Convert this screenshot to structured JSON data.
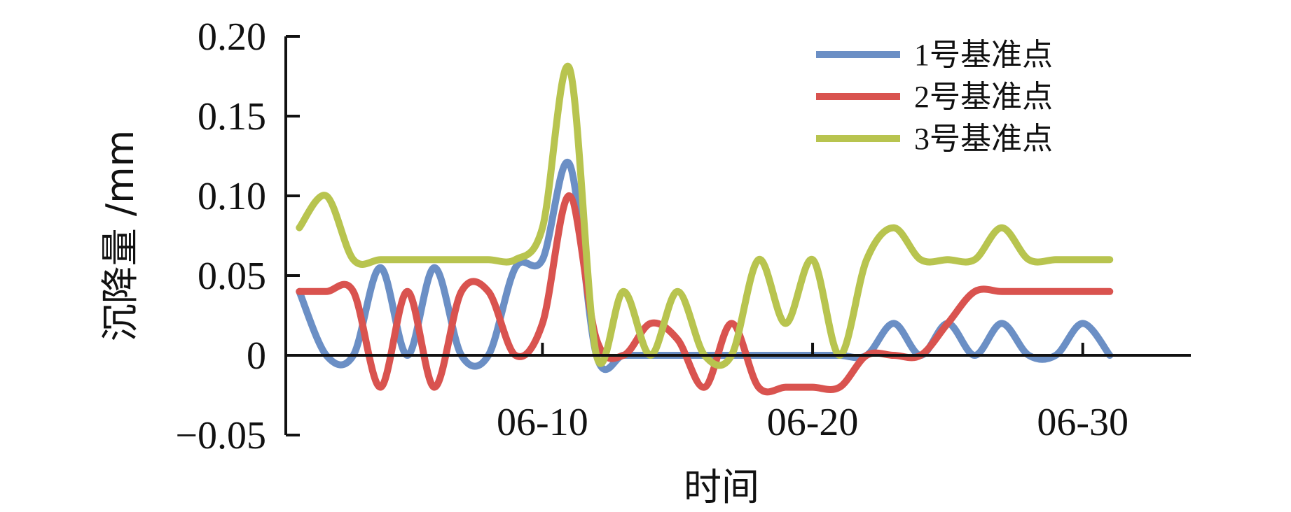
{
  "chart_data": {
    "type": "line",
    "xlabel": "时间",
    "ylabel": "沉降量 /mm",
    "ylim": [
      -0.05,
      0.2
    ],
    "yticks": [
      {
        "value": -0.05,
        "label": "−0.05"
      },
      {
        "value": 0,
        "label": "0"
      },
      {
        "value": 0.05,
        "label": "0.05"
      },
      {
        "value": 0.1,
        "label": "0.10"
      },
      {
        "value": 0.15,
        "label": "0.15"
      },
      {
        "value": 0.2,
        "label": "0.20"
      }
    ],
    "xlim": [
      0.5,
      34
    ],
    "xticks": [
      {
        "value": 10,
        "label": "06-10"
      },
      {
        "value": 20,
        "label": "06-20"
      },
      {
        "value": 30,
        "label": "06-30"
      }
    ],
    "legend_position": "top-right",
    "grid": false,
    "series": [
      {
        "name": "1号基准点",
        "color": "#6b8fc5",
        "points": [
          [
            1,
            0.04
          ],
          [
            2,
            0
          ],
          [
            3,
            0
          ],
          [
            4,
            0.055
          ],
          [
            5,
            0
          ],
          [
            6,
            0.055
          ],
          [
            7,
            0
          ],
          [
            8,
            0
          ],
          [
            9,
            0.055
          ],
          [
            10,
            0.06
          ],
          [
            11,
            0.12
          ],
          [
            12,
            0
          ],
          [
            13,
            0
          ],
          [
            14,
            0
          ],
          [
            15,
            0
          ],
          [
            16,
            0
          ],
          [
            17,
            0
          ],
          [
            18,
            0
          ],
          [
            19,
            0
          ],
          [
            20,
            0
          ],
          [
            21,
            0
          ],
          [
            22,
            0
          ],
          [
            23,
            0.02
          ],
          [
            24,
            0
          ],
          [
            25,
            0.02
          ],
          [
            26,
            0
          ],
          [
            27,
            0.02
          ],
          [
            28,
            0
          ],
          [
            29,
            0
          ],
          [
            30,
            0.02
          ],
          [
            31,
            0
          ]
        ]
      },
      {
        "name": "2号基准点",
        "color": "#d9534f",
        "points": [
          [
            1,
            0.04
          ],
          [
            2,
            0.04
          ],
          [
            3,
            0.04
          ],
          [
            4,
            -0.02
          ],
          [
            5,
            0.04
          ],
          [
            6,
            -0.02
          ],
          [
            7,
            0.04
          ],
          [
            8,
            0.04
          ],
          [
            9,
            0
          ],
          [
            10,
            0.02
          ],
          [
            11,
            0.1
          ],
          [
            12,
            0.01
          ],
          [
            13,
            0
          ],
          [
            14,
            0.02
          ],
          [
            15,
            0.01
          ],
          [
            16,
            -0.02
          ],
          [
            17,
            0.02
          ],
          [
            18,
            -0.02
          ],
          [
            19,
            -0.02
          ],
          [
            20,
            -0.02
          ],
          [
            21,
            -0.02
          ],
          [
            22,
            0
          ],
          [
            23,
            0
          ],
          [
            24,
            0
          ],
          [
            25,
            0.02
          ],
          [
            26,
            0.04
          ],
          [
            27,
            0.04
          ],
          [
            28,
            0.04
          ],
          [
            29,
            0.04
          ],
          [
            30,
            0.04
          ],
          [
            31,
            0.04
          ]
        ]
      },
      {
        "name": "3号基准点",
        "color": "#b8c44f",
        "points": [
          [
            1,
            0.08
          ],
          [
            2,
            0.1
          ],
          [
            3,
            0.06
          ],
          [
            4,
            0.06
          ],
          [
            5,
            0.06
          ],
          [
            6,
            0.06
          ],
          [
            7,
            0.06
          ],
          [
            8,
            0.06
          ],
          [
            9,
            0.06
          ],
          [
            10,
            0.08
          ],
          [
            11,
            0.18
          ],
          [
            12,
            0
          ],
          [
            13,
            0.04
          ],
          [
            14,
            0
          ],
          [
            15,
            0.04
          ],
          [
            16,
            0
          ],
          [
            17,
            0
          ],
          [
            18,
            0.06
          ],
          [
            19,
            0.02
          ],
          [
            20,
            0.06
          ],
          [
            21,
            0
          ],
          [
            22,
            0.06
          ],
          [
            23,
            0.08
          ],
          [
            24,
            0.06
          ],
          [
            25,
            0.06
          ],
          [
            26,
            0.06
          ],
          [
            27,
            0.08
          ],
          [
            28,
            0.06
          ],
          [
            29,
            0.06
          ],
          [
            30,
            0.06
          ],
          [
            31,
            0.06
          ]
        ]
      }
    ]
  }
}
